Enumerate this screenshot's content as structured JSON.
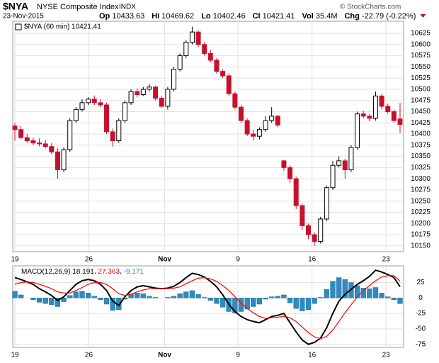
{
  "header": {
    "symbol": "$NYA",
    "name": "NYSE Composite Index",
    "exchange": "INDX",
    "date": "23-Nov-2015",
    "stats": [
      {
        "label": "Op",
        "value": "10433.63"
      },
      {
        "label": "Hi",
        "value": "10469.62"
      },
      {
        "label": "Lo",
        "value": "10402.46"
      },
      {
        "label": "Cl",
        "value": "10421.41"
      },
      {
        "label": "Vol",
        "value": "35.4M"
      },
      {
        "label": "Chg",
        "value": "-22.79 (-0.22%)"
      }
    ],
    "copyright": "© StockCharts.com"
  },
  "chart_data": [
    {
      "type": "candlestick",
      "legend": "$NYA (60 min) 10421.41",
      "up_color": "#000000",
      "down_color": "#c8102e",
      "open": [
        10418,
        10410,
        10392,
        10385,
        10380,
        10378,
        10372,
        10360,
        10320,
        10365,
        10430,
        10455,
        10470,
        10478,
        10470,
        10465,
        10405,
        10385,
        10430,
        10470,
        10495,
        10488,
        10500,
        10505,
        10480,
        10462,
        10500,
        10545,
        10575,
        10605,
        10628,
        10600,
        10580,
        10565,
        10540,
        10530,
        10490,
        10460,
        10430,
        10400,
        10395,
        10410,
        10430,
        10440,
        10340,
        10325,
        10300,
        10240,
        10195,
        10175,
        10160,
        10210,
        10280,
        10330,
        10340,
        10320,
        10370,
        10445,
        10440,
        10435,
        10485,
        10462,
        10450,
        10433.63
      ],
      "high": [
        10425,
        10418,
        10400,
        10392,
        10390,
        10386,
        10380,
        10368,
        10370,
        10435,
        10460,
        10478,
        10482,
        10486,
        10478,
        10470,
        10412,
        10435,
        10475,
        10500,
        10502,
        10505,
        10512,
        10508,
        10485,
        10505,
        10550,
        10580,
        10610,
        10640,
        10632,
        10605,
        10588,
        10570,
        10545,
        10535,
        10495,
        10465,
        10435,
        10410,
        10415,
        10440,
        10460,
        10442,
        10342,
        10330,
        10305,
        10245,
        10200,
        10180,
        10215,
        10285,
        10340,
        10350,
        10345,
        10375,
        10450,
        10452,
        10445,
        10495,
        10490,
        10468,
        10455,
        10469.62
      ],
      "low": [
        10385,
        10388,
        10380,
        10375,
        10372,
        10368,
        10355,
        10300,
        10315,
        10360,
        10425,
        10450,
        10465,
        10465,
        10460,
        10400,
        10372,
        10380,
        10425,
        10465,
        10482,
        10485,
        10495,
        10475,
        10458,
        10455,
        10495,
        10540,
        10570,
        10600,
        10595,
        10575,
        10560,
        10535,
        10525,
        10485,
        10455,
        10425,
        10395,
        10385,
        10388,
        10405,
        10425,
        10415,
        10318,
        10290,
        10232,
        10185,
        10165,
        10150,
        10155,
        10205,
        10275,
        10325,
        10300,
        10315,
        10365,
        10435,
        10428,
        10430,
        10455,
        10445,
        10425,
        10402.46
      ],
      "close": [
        10410,
        10392,
        10385,
        10380,
        10378,
        10372,
        10360,
        10320,
        10365,
        10430,
        10455,
        10470,
        10478,
        10470,
        10465,
        10405,
        10385,
        10430,
        10470,
        10495,
        10488,
        10500,
        10505,
        10480,
        10462,
        10500,
        10545,
        10575,
        10605,
        10628,
        10600,
        10580,
        10565,
        10540,
        10530,
        10490,
        10460,
        10430,
        10400,
        10395,
        10410,
        10430,
        10440,
        10420,
        10325,
        10300,
        10240,
        10195,
        10175,
        10160,
        10210,
        10280,
        10330,
        10340,
        10320,
        10370,
        10445,
        10440,
        10435,
        10485,
        10462,
        10450,
        10430,
        10421.41
      ],
      "ylim": [
        10137,
        10652
      ],
      "yticks": [
        10150,
        10175,
        10200,
        10225,
        10250,
        10275,
        10300,
        10325,
        10350,
        10375,
        10400,
        10425,
        10450,
        10475,
        10500,
        10525,
        10550,
        10575,
        10600,
        10625
      ],
      "xlim": [
        0,
        63
      ],
      "xticks": [
        {
          "value": 0,
          "label": "19"
        },
        {
          "value": 12.1,
          "label": "26"
        },
        {
          "value": 24.5,
          "label": "Nov"
        },
        {
          "value": 36.5,
          "label": "9"
        },
        {
          "value": 48.6,
          "label": "16"
        },
        {
          "value": 60.7,
          "label": "23"
        }
      ],
      "grid": true
    },
    {
      "type": "macd",
      "legend_name": "MACD(12,26,9)",
      "series": [
        {
          "name": "MACD",
          "label": "18.191",
          "color": "#000000",
          "kind": "line",
          "values": [
            33,
            30,
            26,
            22,
            15,
            10,
            4,
            -4,
            2,
            12,
            22,
            28,
            30,
            28,
            22,
            12,
            -5,
            -12,
            2,
            12,
            18,
            20,
            18,
            16,
            15,
            16,
            19,
            25,
            33,
            40,
            38,
            34,
            27,
            18,
            5,
            -10,
            -22,
            -30,
            -35,
            -38,
            -40,
            -35,
            -30,
            -28,
            -25,
            -40,
            -55,
            -68,
            -75,
            -72,
            -65,
            -48,
            -25,
            -5,
            6,
            14,
            22,
            28,
            35,
            45,
            42,
            38,
            33,
            18.191
          ]
        },
        {
          "name": "Signal",
          "label": "27.363",
          "color": "#ff0000",
          "kind": "line",
          "values": [
            22,
            25,
            26,
            25,
            22,
            19,
            15,
            10,
            8,
            8,
            12,
            17,
            22,
            25,
            25,
            22,
            15,
            7,
            4,
            6,
            10,
            13,
            15,
            15,
            15,
            15,
            16,
            18,
            23,
            28,
            32,
            33,
            31,
            27,
            20,
            12,
            2,
            -8,
            -17,
            -24,
            -30,
            -33,
            -32,
            -31,
            -30,
            -32,
            -38,
            -47,
            -56,
            -63,
            -66,
            -62,
            -52,
            -38,
            -24,
            -11,
            2,
            12,
            20,
            28,
            34,
            36,
            36,
            27.363
          ]
        },
        {
          "name": "Histogram",
          "label": "-9.171",
          "color": "#2e8bc0",
          "kind": "bar",
          "values": [
            11,
            5,
            0,
            -3,
            -7,
            -9,
            -11,
            -14,
            -6,
            4,
            10,
            11,
            8,
            3,
            -3,
            -10,
            -20,
            -19,
            -2,
            6,
            8,
            7,
            3,
            1,
            0,
            1,
            3,
            7,
            10,
            12,
            6,
            1,
            -4,
            -9,
            -15,
            -22,
            -24,
            -22,
            -18,
            -14,
            -10,
            -2,
            2,
            3,
            5,
            -8,
            -17,
            -21,
            -19,
            -9,
            1,
            14,
            27,
            33,
            30,
            25,
            20,
            16,
            15,
            17,
            8,
            2,
            -3,
            -9.171
          ]
        }
      ],
      "ylim": [
        -80,
        52
      ],
      "yticks": [
        25,
        0,
        -25,
        -50,
        -75
      ],
      "xlim": [
        0,
        63
      ],
      "xticks": [
        {
          "value": 0,
          "label": "19"
        },
        {
          "value": 12.1,
          "label": "26"
        },
        {
          "value": 24.5,
          "label": "Nov"
        },
        {
          "value": 36.5,
          "label": "9"
        },
        {
          "value": 48.6,
          "label": "16"
        },
        {
          "value": 60.7,
          "label": "23"
        }
      ],
      "grid": true
    }
  ]
}
